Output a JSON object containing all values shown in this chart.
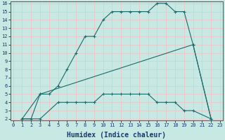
{
  "xlabel": "Humidex (Indice chaleur)",
  "background_color": "#c8e8e4",
  "grid_color": "#e8c8c8",
  "line_color": "#1a6b6b",
  "xlim": [
    0,
    23
  ],
  "ylim": [
    2,
    16
  ],
  "xticks": [
    0,
    1,
    2,
    3,
    4,
    5,
    6,
    7,
    8,
    9,
    10,
    11,
    12,
    13,
    14,
    15,
    16,
    17,
    18,
    19,
    20,
    21,
    22,
    23
  ],
  "yticks": [
    2,
    3,
    4,
    5,
    6,
    7,
    8,
    9,
    10,
    11,
    12,
    13,
    14,
    15,
    16
  ],
  "line1_x": [
    1,
    2,
    3,
    4,
    5,
    6,
    7,
    8,
    9,
    10,
    11,
    12,
    13,
    14,
    15,
    16,
    17,
    18,
    19,
    20,
    22
  ],
  "line1_y": [
    2,
    2,
    5,
    5,
    6,
    8,
    10,
    12,
    12,
    14,
    15,
    15,
    15,
    15,
    15,
    16,
    16,
    15,
    15,
    11,
    2
  ],
  "line2_x": [
    1,
    3,
    20,
    22
  ],
  "line2_y": [
    2,
    5,
    11,
    2
  ],
  "line3_x": [
    1,
    3,
    5,
    6,
    7,
    8,
    9,
    10,
    11,
    12,
    13,
    14,
    15,
    16,
    17,
    18,
    19,
    20,
    22
  ],
  "line3_y": [
    2,
    2,
    4,
    4,
    4,
    4,
    4,
    5,
    5,
    5,
    5,
    5,
    5,
    4,
    4,
    4,
    3,
    3,
    2
  ],
  "tick_fontsize": 5,
  "xlabel_fontsize": 7
}
